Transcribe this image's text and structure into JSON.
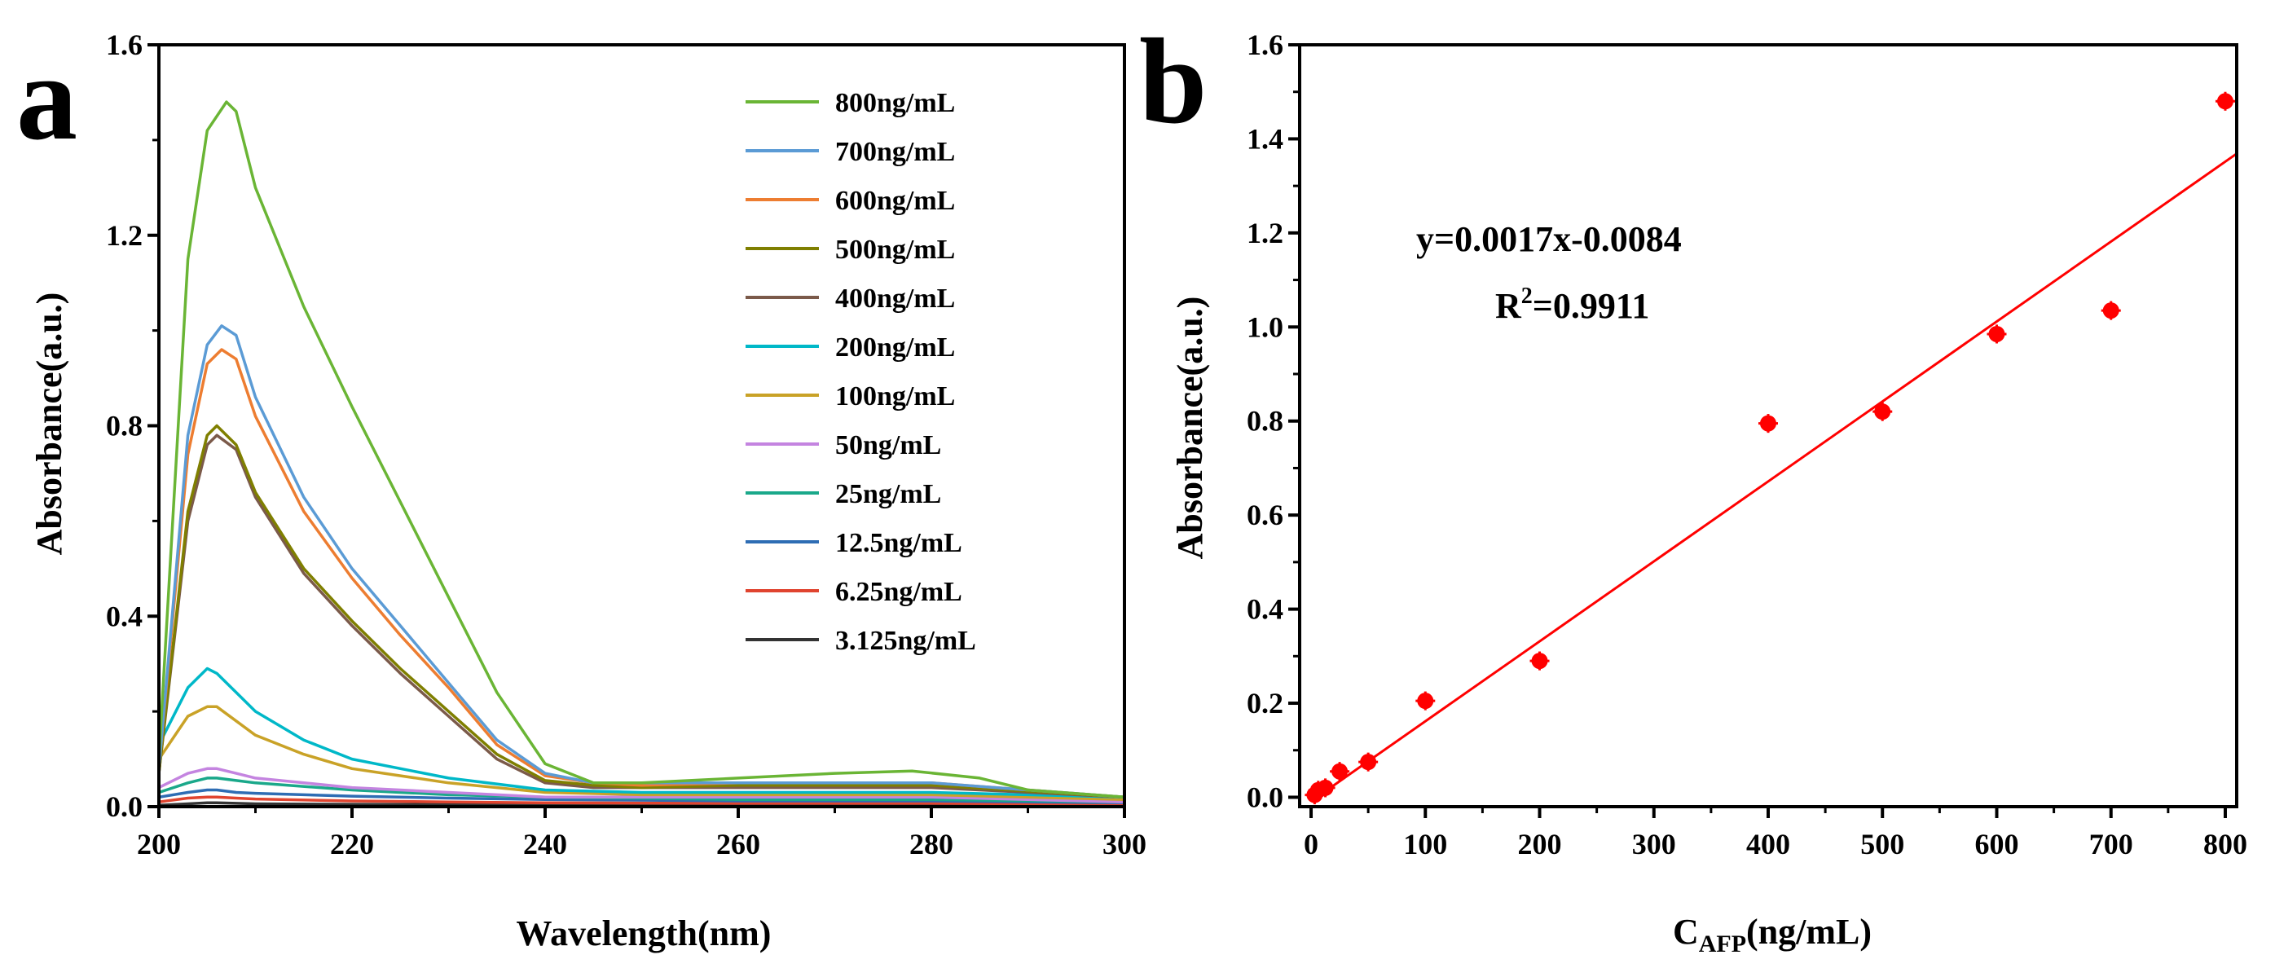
{
  "chart_data": [
    {
      "type": "line",
      "panel_label": "a",
      "xlabel": "Wavelength(nm)",
      "ylabel": "Absorbance(a.u.)",
      "xlim": [
        200,
        300
      ],
      "ylim": [
        0,
        1.6
      ],
      "xticks": [
        200,
        220,
        240,
        260,
        280,
        300
      ],
      "yticks": [
        0.0,
        0.4,
        0.8,
        1.2,
        1.6
      ],
      "ytick_labels": [
        "0.0",
        "0.4",
        "0.8",
        "1.2",
        "1.6"
      ],
      "legend_position": "top-right",
      "series": [
        {
          "name": "800ng/mL",
          "color": "#6ab535",
          "x": [
            200,
            203,
            205,
            207,
            208,
            210,
            215,
            220,
            225,
            230,
            235,
            240,
            245,
            250,
            260,
            270,
            278,
            285,
            290,
            300
          ],
          "y": [
            0.1,
            1.15,
            1.42,
            1.48,
            1.46,
            1.3,
            1.05,
            0.84,
            0.64,
            0.44,
            0.24,
            0.09,
            0.05,
            0.05,
            0.06,
            0.07,
            0.075,
            0.06,
            0.035,
            0.02
          ]
        },
        {
          "name": "700ng/mL",
          "color": "#5b9bd5",
          "x": [
            200,
            203,
            205,
            206.5,
            208,
            210,
            215,
            220,
            225,
            230,
            235,
            240,
            245,
            250,
            260,
            280,
            300
          ],
          "y": [
            0.08,
            0.78,
            0.97,
            1.01,
            0.99,
            0.86,
            0.65,
            0.5,
            0.38,
            0.26,
            0.14,
            0.07,
            0.05,
            0.05,
            0.05,
            0.05,
            0.02
          ]
        },
        {
          "name": "600ng/mL",
          "color": "#ed7d31",
          "x": [
            200,
            203,
            205,
            206.5,
            208,
            210,
            215,
            220,
            225,
            230,
            235,
            240,
            245,
            250,
            260,
            280,
            300
          ],
          "y": [
            0.08,
            0.74,
            0.93,
            0.96,
            0.94,
            0.82,
            0.62,
            0.48,
            0.36,
            0.25,
            0.13,
            0.065,
            0.05,
            0.045,
            0.05,
            0.05,
            0.02
          ]
        },
        {
          "name": "500ng/mL",
          "color": "#7f7f00",
          "x": [
            200,
            203,
            205,
            206,
            208,
            210,
            215,
            220,
            225,
            230,
            235,
            240,
            245,
            250,
            260,
            280,
            300
          ],
          "y": [
            0.07,
            0.62,
            0.78,
            0.8,
            0.76,
            0.66,
            0.5,
            0.39,
            0.29,
            0.2,
            0.11,
            0.055,
            0.045,
            0.04,
            0.045,
            0.045,
            0.02
          ]
        },
        {
          "name": "400ng/mL",
          "color": "#7b5a4a",
          "x": [
            200,
            203,
            205,
            206,
            208,
            210,
            215,
            220,
            225,
            230,
            235,
            240,
            245,
            250,
            260,
            280,
            300
          ],
          "y": [
            0.07,
            0.6,
            0.76,
            0.78,
            0.75,
            0.65,
            0.49,
            0.38,
            0.28,
            0.19,
            0.1,
            0.05,
            0.04,
            0.04,
            0.04,
            0.04,
            0.02
          ]
        },
        {
          "name": "200ng/mL",
          "color": "#00b8c8",
          "x": [
            200,
            203,
            205,
            206,
            208,
            210,
            215,
            220,
            230,
            240,
            250,
            260,
            280,
            300
          ],
          "y": [
            0.13,
            0.25,
            0.29,
            0.28,
            0.24,
            0.2,
            0.14,
            0.1,
            0.06,
            0.035,
            0.03,
            0.03,
            0.03,
            0.02
          ]
        },
        {
          "name": "100ng/mL",
          "color": "#c9a227",
          "x": [
            200,
            203,
            205,
            206,
            208,
            210,
            215,
            220,
            230,
            240,
            250,
            260,
            280,
            300
          ],
          "y": [
            0.1,
            0.19,
            0.21,
            0.21,
            0.18,
            0.15,
            0.11,
            0.08,
            0.05,
            0.03,
            0.025,
            0.025,
            0.025,
            0.015
          ]
        },
        {
          "name": "50ng/mL",
          "color": "#c484e0",
          "x": [
            200,
            203,
            205,
            206,
            208,
            210,
            220,
            230,
            240,
            260,
            280,
            300
          ],
          "y": [
            0.04,
            0.07,
            0.08,
            0.08,
            0.07,
            0.06,
            0.04,
            0.03,
            0.02,
            0.02,
            0.02,
            0.01
          ]
        },
        {
          "name": "25ng/mL",
          "color": "#1aa88a",
          "x": [
            200,
            203,
            205,
            206,
            208,
            210,
            220,
            230,
            240,
            260,
            280,
            300
          ],
          "y": [
            0.03,
            0.05,
            0.06,
            0.06,
            0.055,
            0.05,
            0.035,
            0.025,
            0.02,
            0.015,
            0.015,
            0.01
          ]
        },
        {
          "name": "12.5ng/mL",
          "color": "#2e6db4",
          "x": [
            200,
            203,
            205,
            206,
            208,
            210,
            220,
            230,
            240,
            260,
            280,
            300
          ],
          "y": [
            0.02,
            0.03,
            0.035,
            0.035,
            0.03,
            0.028,
            0.022,
            0.018,
            0.015,
            0.012,
            0.012,
            0.008
          ]
        },
        {
          "name": "6.25ng/mL",
          "color": "#e0442f",
          "x": [
            200,
            203,
            205,
            206,
            208,
            210,
            220,
            230,
            240,
            260,
            280,
            300
          ],
          "y": [
            0.01,
            0.018,
            0.02,
            0.02,
            0.018,
            0.016,
            0.012,
            0.01,
            0.008,
            0.007,
            0.007,
            0.005
          ]
        },
        {
          "name": "3.125ng/mL",
          "color": "#333333",
          "x": [
            200,
            203,
            205,
            206,
            208,
            210,
            220,
            240,
            260,
            280,
            300
          ],
          "y": [
            0.003,
            0.006,
            0.008,
            0.008,
            0.007,
            0.006,
            0.005,
            0.004,
            0.004,
            0.004,
            0.003
          ]
        }
      ]
    },
    {
      "type": "scatter",
      "panel_label": "b",
      "xlabel_main": "C",
      "xlabel_sub": "AFP",
      "xlabel_tail": "(ng/mL)",
      "ylabel": "Absorbance(a.u.)",
      "xlim": [
        -10,
        810
      ],
      "ylim": [
        -0.02,
        1.6
      ],
      "xticks": [
        0,
        100,
        200,
        300,
        400,
        500,
        600,
        700,
        800
      ],
      "yticks": [
        0.0,
        0.2,
        0.4,
        0.6,
        0.8,
        1.0,
        1.2,
        1.4,
        1.6
      ],
      "ytick_labels": [
        "0.0",
        "0.2",
        "0.4",
        "0.6",
        "0.8",
        "1.0",
        "1.2",
        "1.4",
        "1.6"
      ],
      "point_color": "#ff0000",
      "fit_color": "#ff0000",
      "points": [
        {
          "x": 3.125,
          "y": 0.005,
          "err": 0.02
        },
        {
          "x": 6.25,
          "y": 0.015,
          "err": 0.02
        },
        {
          "x": 12.5,
          "y": 0.02,
          "err": 0.02
        },
        {
          "x": 25,
          "y": 0.055,
          "err": 0.02
        },
        {
          "x": 50,
          "y": 0.075,
          "err": 0.02
        },
        {
          "x": 100,
          "y": 0.205,
          "err": 0.02
        },
        {
          "x": 200,
          "y": 0.29,
          "err": 0.02
        },
        {
          "x": 400,
          "y": 0.795,
          "err": 0.02
        },
        {
          "x": 500,
          "y": 0.82,
          "err": 0.02
        },
        {
          "x": 600,
          "y": 0.985,
          "err": 0.02
        },
        {
          "x": 700,
          "y": 1.035,
          "err": 0.02
        },
        {
          "x": 800,
          "y": 1.48,
          "err": 0.02
        }
      ],
      "fit": {
        "slope": 0.0017,
        "intercept": -0.0084,
        "x_range": [
          0,
          825
        ]
      },
      "equation": "y=0.0017x-0.0084",
      "r2_prefix": "R",
      "r2_sup": "2",
      "r2_value": "=0.9911"
    }
  ]
}
